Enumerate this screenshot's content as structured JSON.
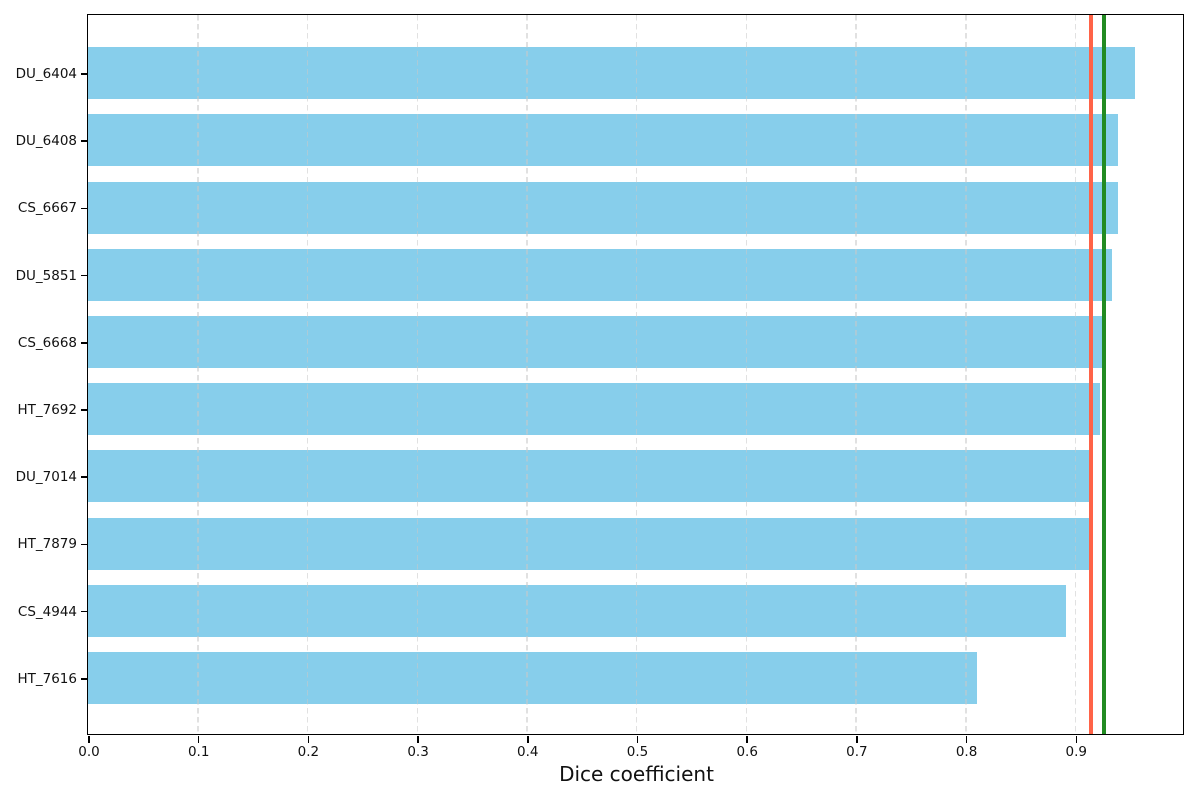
{
  "chart_data": {
    "type": "bar",
    "orientation": "horizontal",
    "title": "",
    "xlabel": "Dice coefficient",
    "ylabel": "",
    "categories": [
      "DU_6404",
      "DU_6408",
      "CS_6667",
      "DU_5851",
      "CS_6668",
      "HT_7692",
      "DU_7014",
      "HT_7879",
      "CS_4944",
      "HT_7616"
    ],
    "values": [
      0.954,
      0.939,
      0.939,
      0.933,
      0.928,
      0.922,
      0.913,
      0.912,
      0.891,
      0.81
    ],
    "x_ticks": [
      0.0,
      0.1,
      0.2,
      0.3,
      0.4,
      0.5,
      0.6,
      0.7,
      0.8,
      0.9
    ],
    "x_tick_labels": [
      "0.0",
      "0.1",
      "0.2",
      "0.3",
      "0.4",
      "0.5",
      "0.6",
      "0.7",
      "0.8",
      "0.9"
    ],
    "xlim": [
      0,
      0.998
    ],
    "grid": {
      "axis": "x",
      "style": "dashed",
      "color": "#dcdcdc"
    },
    "legend_position": "none",
    "colors": {
      "bar": "#87CEEB",
      "mean_line": "#FF6347",
      "median_line": "#228B22",
      "axis": "#000000",
      "text": "#111111"
    },
    "reference_lines": [
      {
        "name": "mean",
        "value": 0.914,
        "color": "#FF6347"
      },
      {
        "name": "median",
        "value": 0.926,
        "color": "#228B22"
      }
    ]
  }
}
